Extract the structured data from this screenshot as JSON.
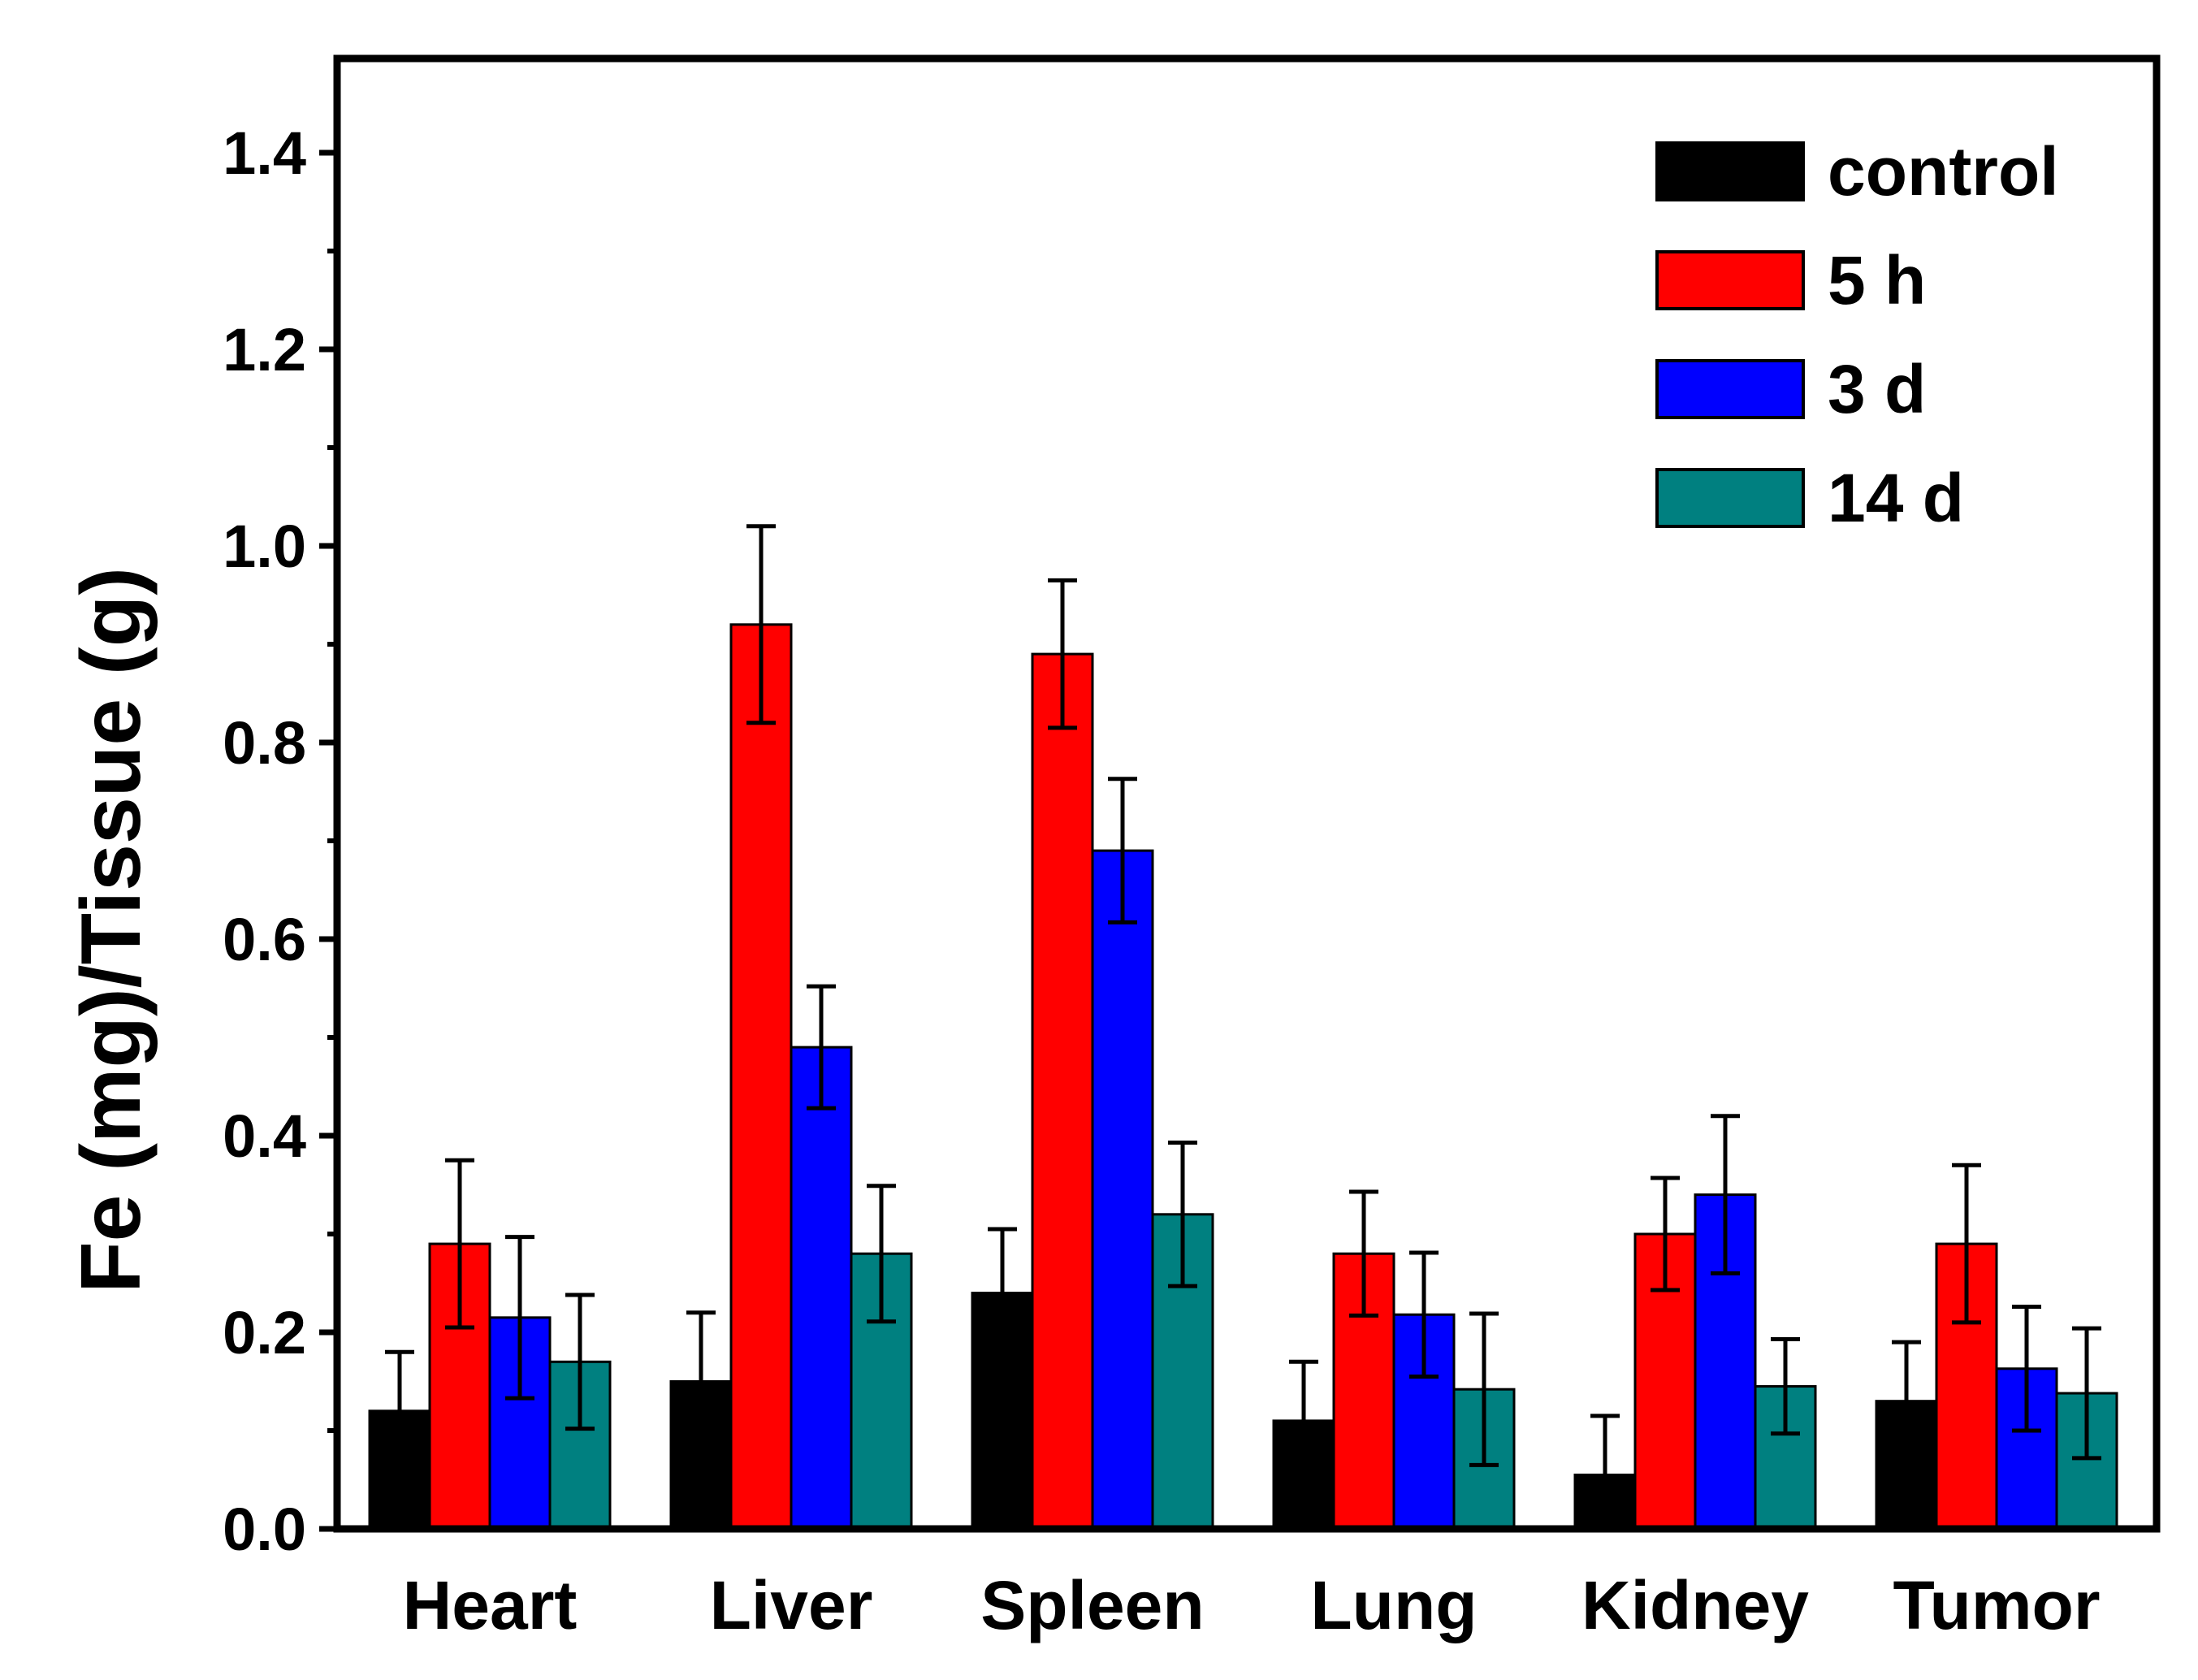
{
  "chart_data": {
    "type": "bar",
    "title": "",
    "xlabel": "",
    "ylabel": "Fe (mg)/Tissue (g)",
    "ylim": [
      0,
      1.5
    ],
    "yticks": [
      0.0,
      0.2,
      0.4,
      0.6,
      0.8,
      1.0,
      1.2,
      1.4
    ],
    "ytick_labels": [
      "0.0",
      "0.2",
      "0.4",
      "0.6",
      "0.8",
      "1.0",
      "1.2",
      "1.4"
    ],
    "categories": [
      "Heart",
      "Liver",
      "Spleen",
      "Lung",
      "Kidney",
      "Tumor"
    ],
    "legend_position": "top-right",
    "grid": false,
    "series": [
      {
        "name": "control",
        "color": "#000000",
        "values": [
          0.12,
          0.15,
          0.24,
          0.11,
          0.055,
          0.13
        ],
        "errors": [
          0.06,
          0.07,
          0.065,
          0.06,
          0.06,
          0.06
        ]
      },
      {
        "name": "5 h",
        "color": "#ff0000",
        "values": [
          0.29,
          0.92,
          0.89,
          0.28,
          0.3,
          0.29
        ],
        "errors": [
          0.085,
          0.1,
          0.075,
          0.063,
          0.057,
          0.08
        ]
      },
      {
        "name": "3 d",
        "color": "#0000ff",
        "values": [
          0.215,
          0.49,
          0.69,
          0.218,
          0.34,
          0.163
        ],
        "errors": [
          0.082,
          0.062,
          0.073,
          0.063,
          0.08,
          0.063
        ]
      },
      {
        "name": "14 d",
        "color": "#008080",
        "values": [
          0.17,
          0.28,
          0.32,
          0.142,
          0.145,
          0.138
        ],
        "errors": [
          0.068,
          0.069,
          0.073,
          0.077,
          0.048,
          0.066
        ]
      }
    ]
  }
}
